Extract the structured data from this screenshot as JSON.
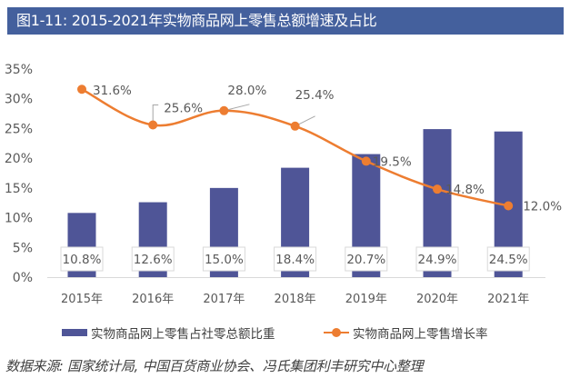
{
  "header": {
    "title": "图1-11: 2015-2021年实物商品网上零售总额增速及占比"
  },
  "chart_data": {
    "type": "bar",
    "title": "2015-2021年实物商品网上零售总额增速及占比",
    "xlabel": "",
    "ylabel": "",
    "categories": [
      "2015年",
      "2016年",
      "2017年",
      "2018年",
      "2019年",
      "2020年",
      "2021年"
    ],
    "ylim": [
      0,
      35
    ],
    "yticks": [
      "0%",
      "5%",
      "10%",
      "15%",
      "20%",
      "25%",
      "30%",
      "35%"
    ],
    "ytick_values": [
      0,
      5,
      10,
      15,
      20,
      25,
      30,
      35
    ],
    "grid": false,
    "legend_position": "bottom",
    "series": [
      {
        "name": "实物商品网上零售占社零总额比重",
        "type": "bar",
        "color": "#4f5597",
        "values": [
          10.8,
          12.6,
          15.0,
          18.4,
          20.7,
          24.9,
          24.5
        ],
        "labels": [
          "10.8%",
          "12.6%",
          "15.0%",
          "18.4%",
          "20.7%",
          "24.9%",
          "24.5%"
        ]
      },
      {
        "name": "实物商品网上零售增长率",
        "type": "line",
        "color": "#ed7d31",
        "values": [
          31.6,
          25.6,
          28.0,
          25.4,
          19.5,
          14.8,
          12.0
        ],
        "labels": [
          "31.6%",
          "25.6%",
          "28.0%",
          "25.4%",
          "19.5%",
          "14.8%",
          "12.0%"
        ]
      }
    ]
  },
  "legend": {
    "bar_label": "实物商品网上零售占社零总额比重",
    "line_label": "实物商品网上零售增长率"
  },
  "source": "数据来源: 国家统计局, 中国百货商业协会、冯氏集团利丰研究中心整理"
}
